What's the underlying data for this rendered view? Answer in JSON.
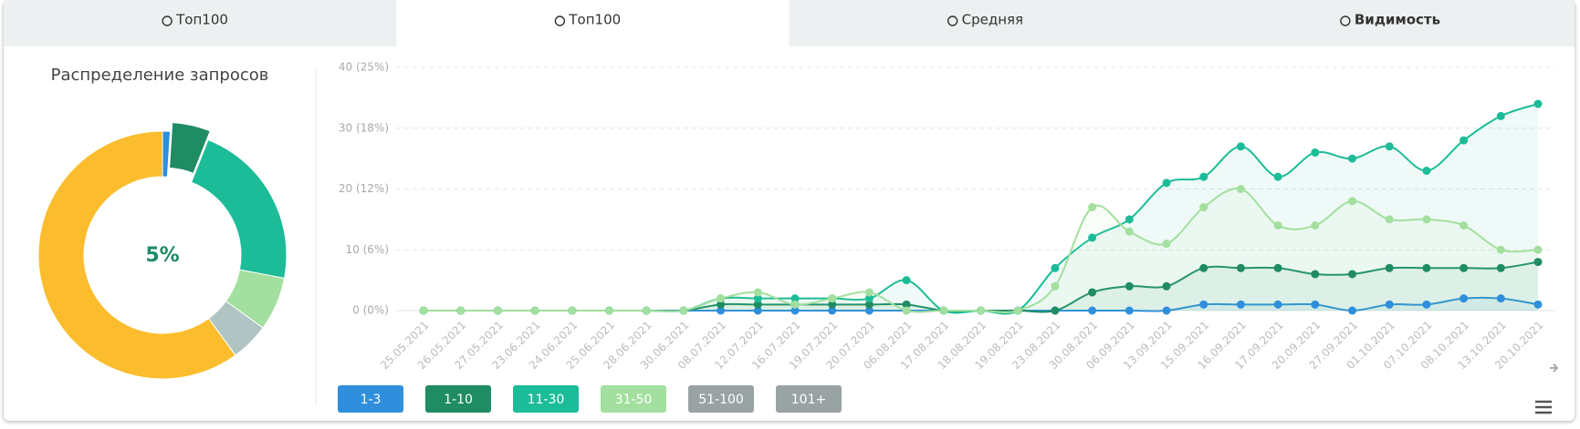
{
  "tabs": [
    "Топ100",
    "Топ100",
    "Средняя",
    "Видимость"
  ],
  "active_tab": 1,
  "donut": {
    "title": "Распределение запросов",
    "center_label": "5%",
    "values": [
      1,
      5,
      22,
      7,
      5,
      60
    ],
    "colors": [
      "#2f8fdc",
      "#1f8c63",
      "#1cbc98",
      "#a3df9e",
      "#b1c4c4",
      "#fbbd2e"
    ],
    "selected": 1
  },
  "chart_data": {
    "type": "line",
    "categories": [
      "25.05.2021",
      "26.05.2021",
      "27.05.2021",
      "23.06.2021",
      "24.06.2021",
      "25.06.2021",
      "28.06.2021",
      "30.06.2021",
      "08.07.2021",
      "12.07.2021",
      "16.07.2021",
      "19.07.2021",
      "20.07.2021",
      "06.08.2021",
      "17.08.2021",
      "18.08.2021",
      "19.08.2021",
      "23.08.2021",
      "30.08.2021",
      "06.09.2021",
      "13.09.2021",
      "15.09.2021",
      "16.09.2021",
      "17.09.2021",
      "20.09.2021",
      "27.09.2021",
      "01.10.2021",
      "07.10.2021",
      "08.10.2021",
      "13.10.2021",
      "20.10.2021"
    ],
    "series": [
      {
        "name": "1-3",
        "color": "#2f8fdc",
        "values": [
          0,
          0,
          0,
          0,
          0,
          0,
          0,
          0,
          0,
          0,
          0,
          0,
          0,
          0,
          0,
          0,
          0,
          0,
          0,
          0,
          0,
          1,
          1,
          1,
          1,
          0,
          1,
          1,
          2,
          2,
          1
        ]
      },
      {
        "name": "1-10",
        "color": "#1f8c63",
        "values": [
          0,
          0,
          0,
          0,
          0,
          0,
          0,
          0,
          1,
          1,
          1,
          1,
          1,
          1,
          0,
          0,
          0,
          0,
          3,
          4,
          4,
          7,
          7,
          7,
          6,
          6,
          7,
          7,
          7,
          7,
          8
        ]
      },
      {
        "name": "11-30",
        "color": "#1cbc98",
        "values": [
          0,
          0,
          0,
          0,
          0,
          0,
          0,
          0,
          2,
          2,
          2,
          2,
          2,
          5,
          0,
          0,
          0,
          7,
          12,
          15,
          21,
          22,
          27,
          22,
          26,
          25,
          27,
          23,
          28,
          32,
          34
        ]
      },
      {
        "name": "31-50",
        "color": "#a3df9e",
        "values": [
          0,
          0,
          0,
          0,
          0,
          0,
          0,
          0,
          2,
          3,
          1,
          2,
          3,
          0,
          0,
          0,
          0,
          4,
          17,
          13,
          11,
          17,
          20,
          14,
          14,
          18,
          15,
          15,
          14,
          10,
          10
        ]
      },
      {
        "name": "51-100",
        "color": "#9aa3a3",
        "hidden": true
      },
      {
        "name": "101+",
        "color": "#9aa3a3",
        "hidden": true
      }
    ],
    "ylim": [
      0,
      40
    ],
    "yticks": [
      {
        "value": 0,
        "label": "0 (0%)"
      },
      {
        "value": 10,
        "label": "10 (6%)"
      },
      {
        "value": 20,
        "label": "20 (12%)"
      },
      {
        "value": 30,
        "label": "30 (18%)"
      },
      {
        "value": 40,
        "label": "40 (25%)"
      }
    ],
    "grid": true,
    "area": true
  }
}
